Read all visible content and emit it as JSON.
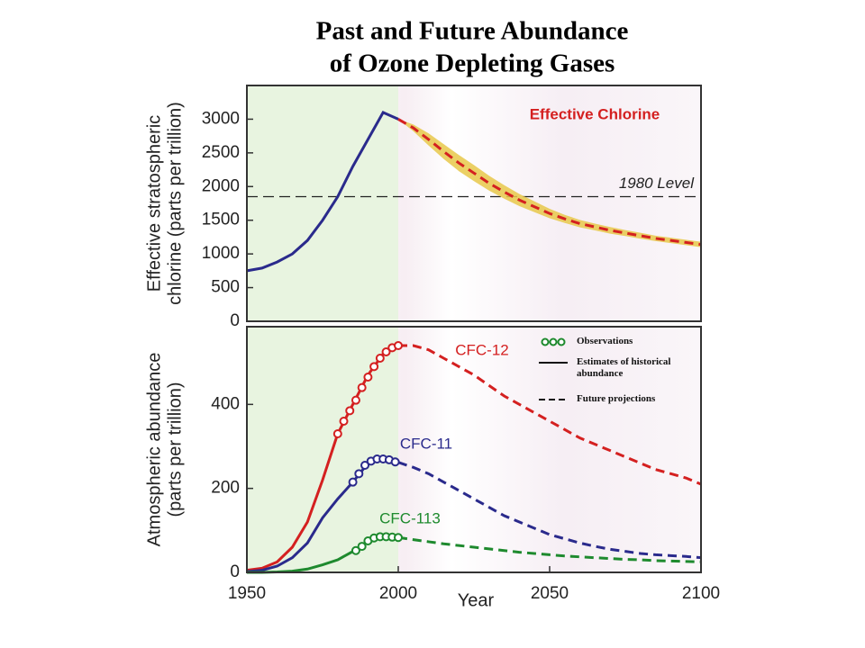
{
  "chart_data": [
    {
      "type": "line",
      "title": [
        "Past and Future Abundance",
        "of Ozone Depleting Gases"
      ],
      "ylabel": [
        "Effective stratospheric",
        "chlorine (parts per trillion)"
      ],
      "xlim": [
        1950,
        2100
      ],
      "ylim": [
        0,
        3500
      ],
      "yticks": [
        0,
        500,
        1000,
        1500,
        2000,
        2500,
        3000
      ],
      "shaded_xrange": [
        1950,
        2000
      ],
      "x": [
        1950,
        1955,
        1960,
        1965,
        1970,
        1975,
        1980,
        1985,
        1990,
        1995,
        2000,
        2005,
        2010,
        2015,
        2020,
        2025,
        2030,
        2035,
        2040,
        2045,
        2050,
        2055,
        2060,
        2065,
        2070,
        2075,
        2080,
        2085,
        2090,
        2095,
        2100
      ],
      "hlines": [
        {
          "value": 1850,
          "label": "1980 Level"
        }
      ],
      "series": [
        {
          "name": "Effective Chlorine",
          "color": "#d42020",
          "historical_color": "#2a2a8c",
          "values": [
            750,
            790,
            880,
            1000,
            1200,
            1500,
            1850,
            2300,
            2700,
            3100,
            3000,
            null,
            null,
            null,
            null,
            null,
            null,
            null,
            null,
            null,
            null,
            null,
            null,
            null,
            null,
            null,
            null,
            null,
            null,
            null,
            null
          ],
          "projection": [
            null,
            null,
            null,
            null,
            null,
            null,
            null,
            null,
            null,
            null,
            3000,
            2870,
            2700,
            2520,
            2350,
            2200,
            2050,
            1920,
            1800,
            1700,
            1600,
            1520,
            1450,
            1400,
            1350,
            1310,
            1270,
            1230,
            1200,
            1170,
            1140
          ],
          "band_low": [
            null,
            null,
            null,
            null,
            null,
            null,
            null,
            null,
            null,
            null,
            3000,
            2820,
            2610,
            2410,
            2230,
            2080,
            1940,
            1820,
            1710,
            1620,
            1530,
            1460,
            1395,
            1350,
            1300,
            1265,
            1225,
            1190,
            1160,
            1130,
            1100
          ],
          "band_high": [
            null,
            null,
            null,
            null,
            null,
            null,
            null,
            null,
            null,
            null,
            3000,
            2920,
            2790,
            2630,
            2470,
            2320,
            2160,
            2020,
            1890,
            1780,
            1670,
            1580,
            1505,
            1450,
            1400,
            1355,
            1315,
            1270,
            1240,
            1210,
            1180
          ],
          "band_color": "#e8c84a"
        }
      ]
    },
    {
      "type": "line",
      "ylabel": [
        "Atmospheric abundance",
        "(parts per trillion)"
      ],
      "xlabel": "Year",
      "xlim": [
        1950,
        2100
      ],
      "ylim": [
        0,
        585
      ],
      "xticks": [
        1950,
        2000,
        2050,
        2100
      ],
      "yticks": [
        0,
        200,
        400
      ],
      "shaded_xrange": [
        1950,
        2000
      ],
      "legend": [
        "Observations",
        "Estimates of historical abundance",
        "Future projections"
      ],
      "x": [
        1950,
        1955,
        1960,
        1965,
        1970,
        1975,
        1980,
        1985,
        1990,
        1995,
        2000,
        2005,
        2010,
        2015,
        2020,
        2025,
        2030,
        2035,
        2040,
        2045,
        2050,
        2055,
        2060,
        2065,
        2070,
        2075,
        2080,
        2085,
        2090,
        2095,
        2100
      ],
      "series": [
        {
          "name": "CFC-12",
          "color": "#d42020",
          "values": [
            5,
            10,
            25,
            60,
            120,
            220,
            330,
            400,
            470,
            520,
            540,
            null,
            null,
            null,
            null,
            null,
            null,
            null,
            null,
            null,
            null,
            null,
            null,
            null,
            null,
            null,
            null,
            null,
            null,
            null,
            null
          ],
          "projection": [
            null,
            null,
            null,
            null,
            null,
            null,
            null,
            null,
            null,
            null,
            540,
            540,
            530,
            510,
            490,
            470,
            445,
            420,
            400,
            380,
            360,
            340,
            320,
            305,
            290,
            275,
            260,
            245,
            235,
            225,
            210
          ],
          "obs_x": [
            1980,
            1982,
            1984,
            1986,
            1988,
            1990,
            1992,
            1994,
            1996,
            1998,
            2000
          ],
          "obs_values": [
            330,
            360,
            385,
            410,
            440,
            465,
            490,
            510,
            525,
            535,
            540
          ]
        },
        {
          "name": "CFC-11",
          "color": "#2a2a8c",
          "values": [
            2,
            5,
            15,
            35,
            70,
            130,
            175,
            215,
            260,
            270,
            262,
            null,
            null,
            null,
            null,
            null,
            null,
            null,
            null,
            null,
            null,
            null,
            null,
            null,
            null,
            null,
            null,
            null,
            null,
            null,
            null
          ],
          "projection": [
            null,
            null,
            null,
            null,
            null,
            null,
            null,
            null,
            null,
            null,
            262,
            250,
            235,
            215,
            195,
            175,
            155,
            135,
            120,
            105,
            90,
            80,
            70,
            62,
            55,
            50,
            45,
            42,
            40,
            38,
            35
          ],
          "obs_x": [
            1985,
            1987,
            1989,
            1991,
            1993,
            1995,
            1997,
            1999
          ],
          "obs_values": [
            215,
            235,
            255,
            265,
            270,
            270,
            268,
            263
          ]
        },
        {
          "name": "CFC-113",
          "color": "#1e8a2e",
          "values": [
            0,
            0,
            1,
            3,
            8,
            18,
            30,
            50,
            75,
            85,
            83,
            null,
            null,
            null,
            null,
            null,
            null,
            null,
            null,
            null,
            null,
            null,
            null,
            null,
            null,
            null,
            null,
            null,
            null,
            null,
            null
          ],
          "projection": [
            null,
            null,
            null,
            null,
            null,
            null,
            null,
            null,
            null,
            null,
            83,
            78,
            73,
            68,
            64,
            60,
            56,
            52,
            48,
            45,
            42,
            39,
            37,
            35,
            33,
            31,
            30,
            28,
            27,
            26,
            25
          ],
          "obs_x": [
            1986,
            1988,
            1990,
            1992,
            1994,
            1996,
            1998,
            2000
          ],
          "obs_values": [
            52,
            62,
            75,
            82,
            85,
            85,
            84,
            83
          ]
        }
      ]
    }
  ]
}
